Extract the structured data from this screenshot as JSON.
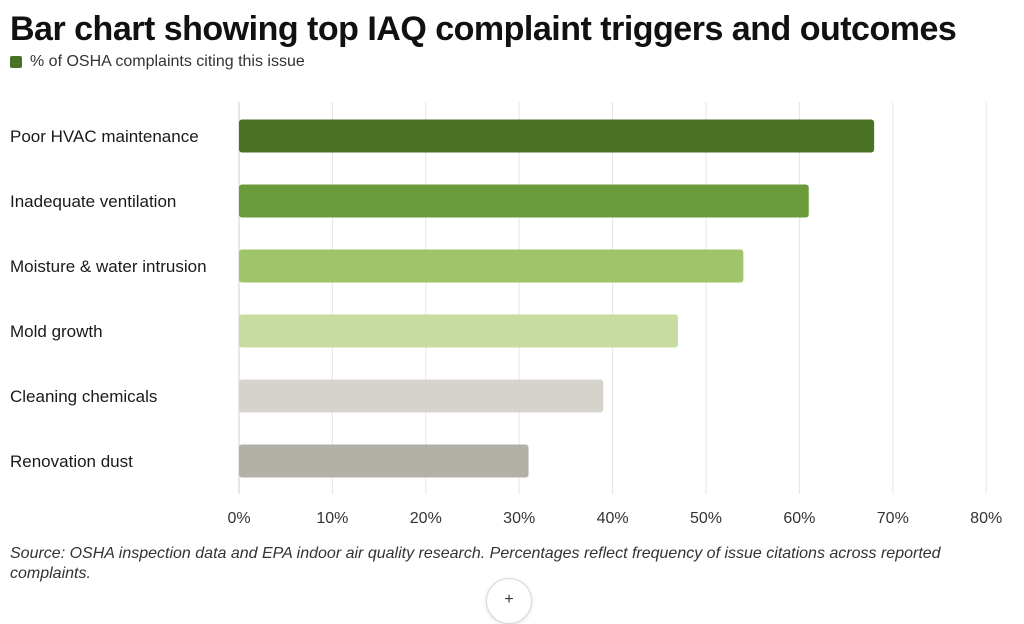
{
  "chart_data": {
    "type": "bar",
    "orientation": "horizontal",
    "title": "Bar chart showing top IAQ complaint triggers and outcomes",
    "categories": [
      "Poor HVAC maintenance",
      "Inadequate ventilation",
      "Moisture & water intrusion",
      "Mold growth",
      "Cleaning chemicals",
      "Renovation dust"
    ],
    "series": [
      {
        "name": "% of OSHA complaints citing this issue",
        "values": [
          68,
          61,
          54,
          47,
          39,
          31
        ]
      }
    ],
    "bar_colors": [
      "#4a7226",
      "#6b9a3a",
      "#a0c46a",
      "#c7dda0",
      "#d6d3cc",
      "#b3b0a8"
    ],
    "legend_color": "#4a7226",
    "xlim": [
      0,
      80
    ],
    "x_ticks": [
      0,
      10,
      20,
      30,
      40,
      50,
      60,
      70,
      80
    ],
    "x_tick_labels": [
      "0%",
      "10%",
      "20%",
      "30%",
      "40%",
      "50%",
      "60%",
      "70%",
      "80%"
    ],
    "grid": true,
    "legend_position": "top-left"
  },
  "source_note": "Source: OSHA inspection data and EPA indoor air quality research. Percentages reflect frequency of issue citations across reported complaints.",
  "scroll_icon": "plus-icon",
  "scroll_glyph": "+"
}
